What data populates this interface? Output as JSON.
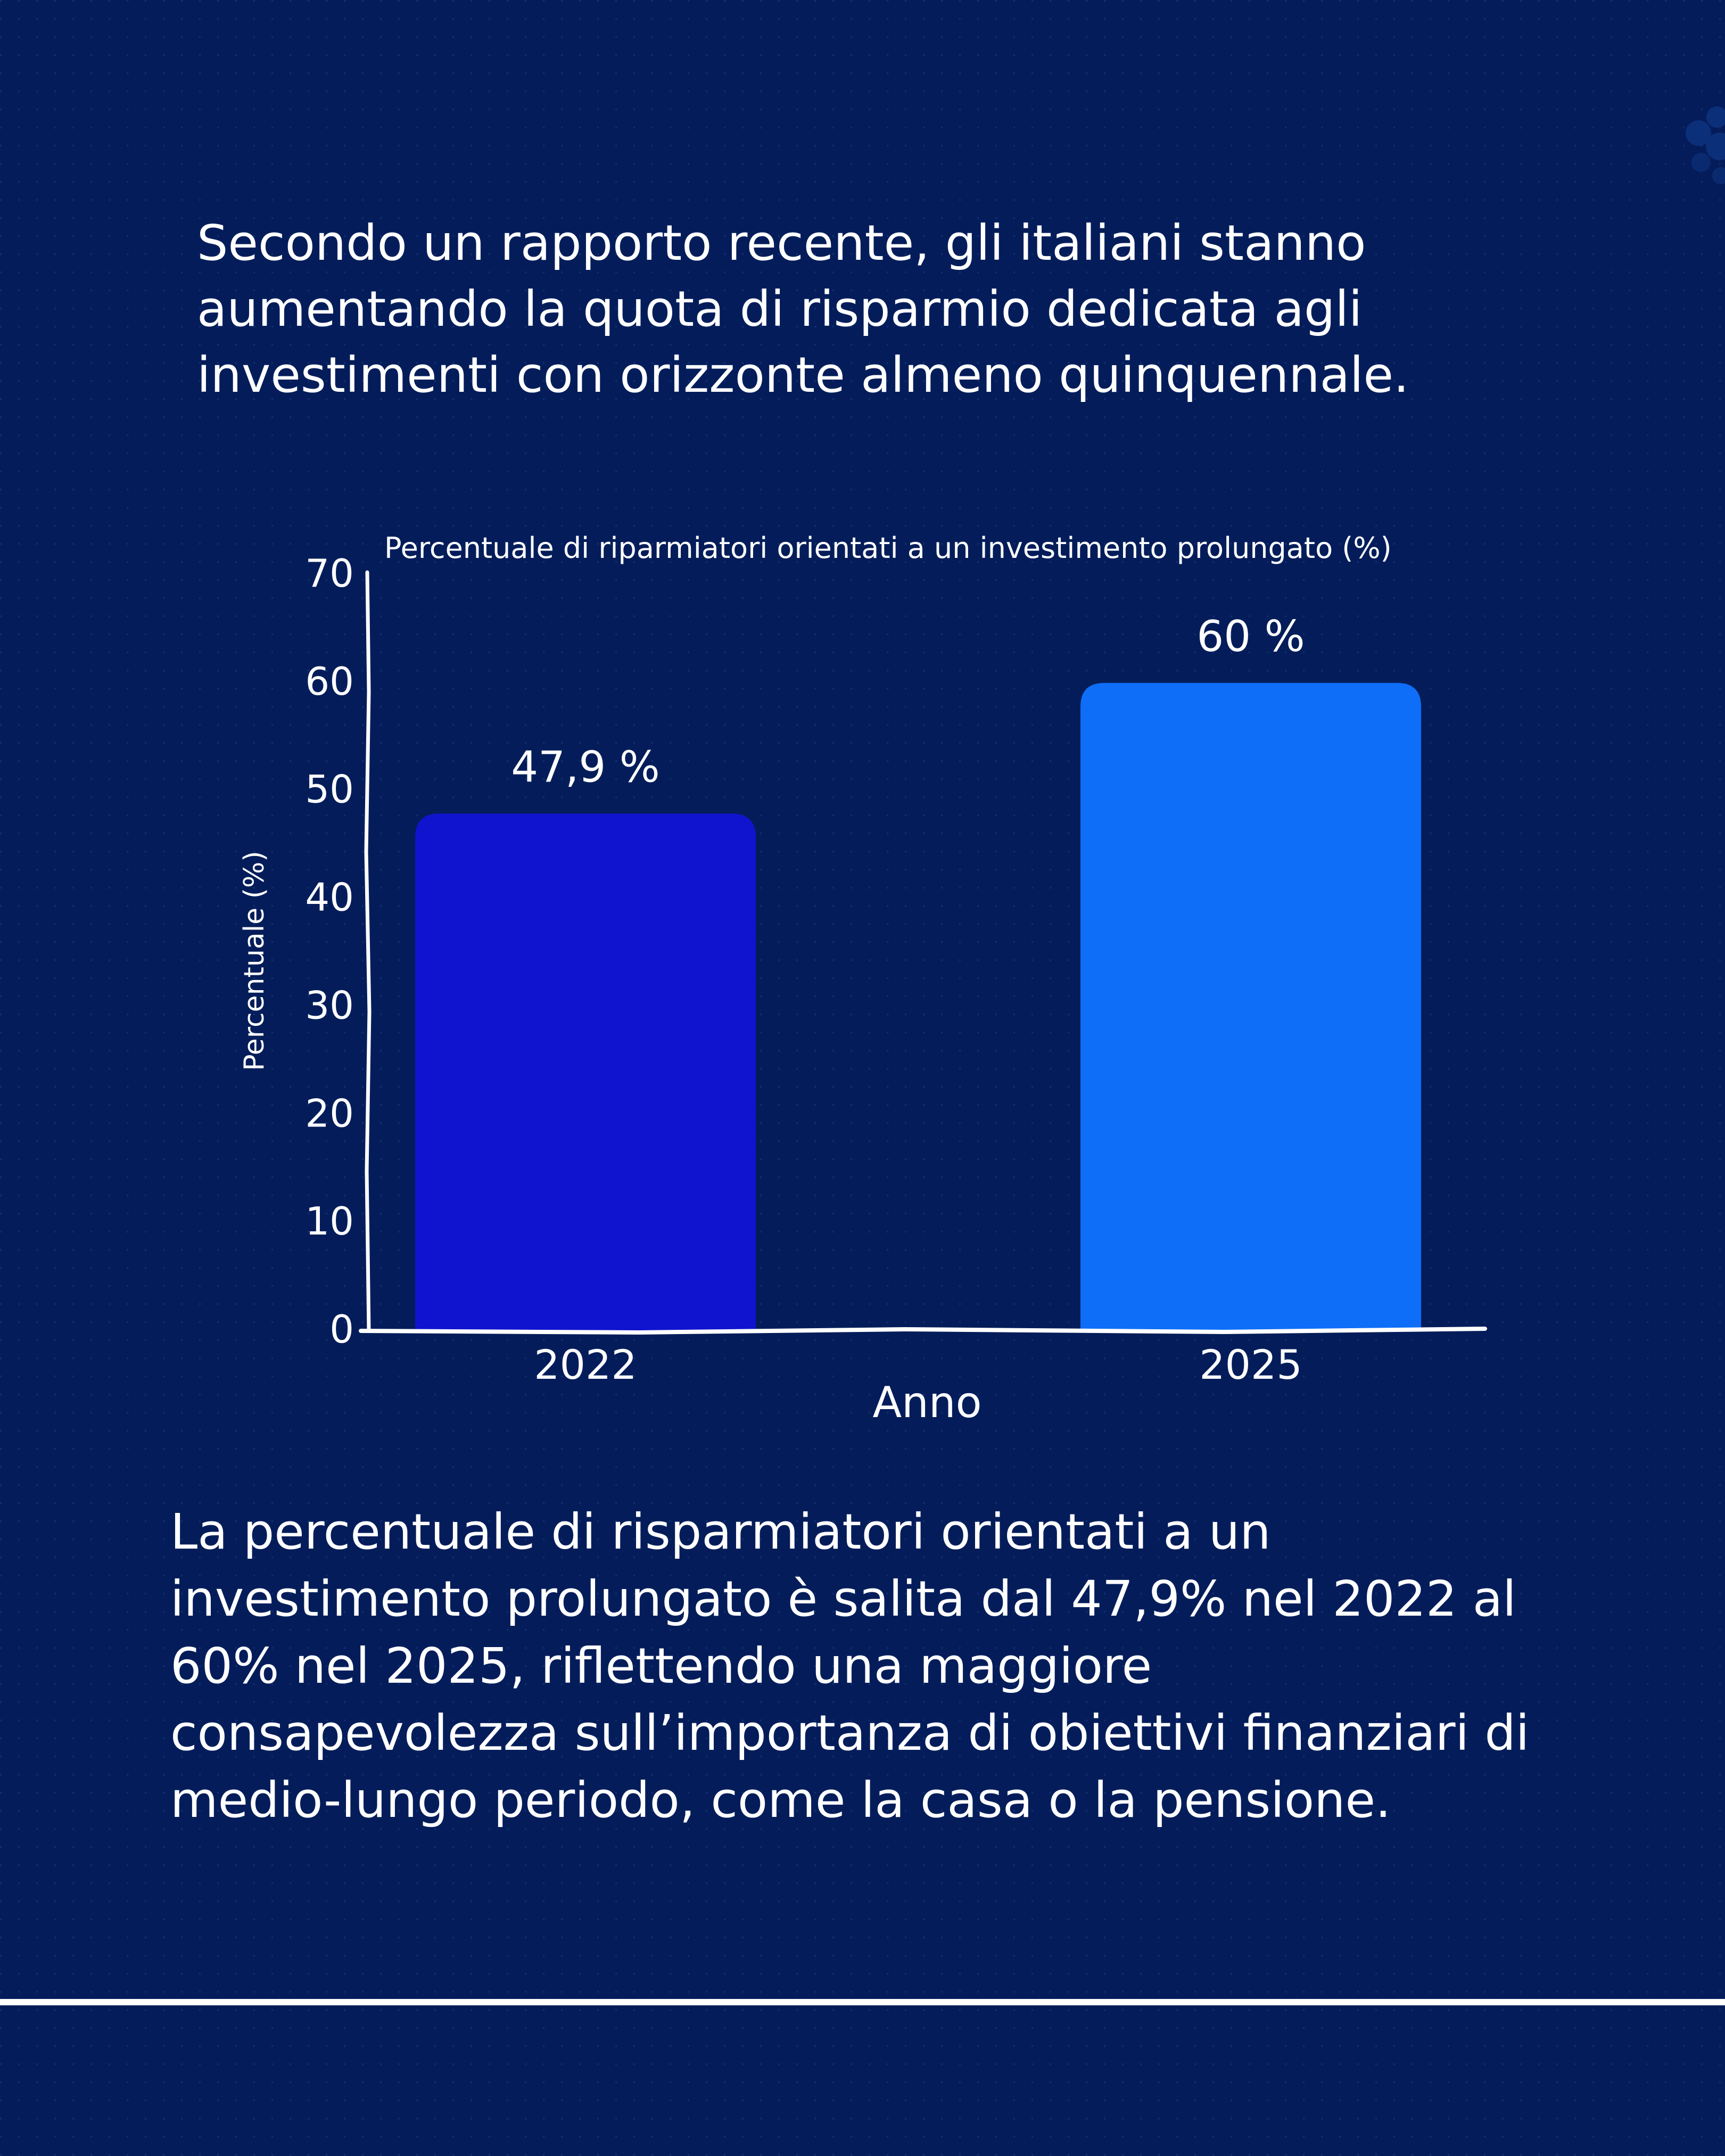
{
  "intro_text": "Secondo un rapporto recente, gli italiani stanno aumentando la quota di risparmio dedicata agli investimenti con orizzonte almeno quinquennale.",
  "summary_text": "La percentuale di risparmiatori orientati a un investimento prolungato è salita dal 47,9% nel 2022 al 60% nel 2025, riflettendo una maggiore consapevolezza sull’importanza di obiettivi finanziari di medio-lungo periodo, come la casa o la pensione.",
  "colors": {
    "background": "#041d5a",
    "bar_2022": "#1014cf",
    "bar_2025": "#0e6ef8",
    "text": "#ffffff"
  },
  "chart_data": {
    "type": "bar",
    "title": "Percentuale di riparmiatori orientati a un investimento prolungato (%)",
    "xlabel": "Anno",
    "ylabel": "Percentuale (%)",
    "categories": [
      "2022",
      "2025"
    ],
    "values": [
      47.9,
      60
    ],
    "data_labels": [
      "47,9 %",
      "60 %"
    ],
    "yticks": [
      "0",
      "10",
      "20",
      "30",
      "40",
      "50",
      "60",
      "70"
    ],
    "ylim": [
      0,
      70
    ],
    "grid": false,
    "legend": "none"
  }
}
